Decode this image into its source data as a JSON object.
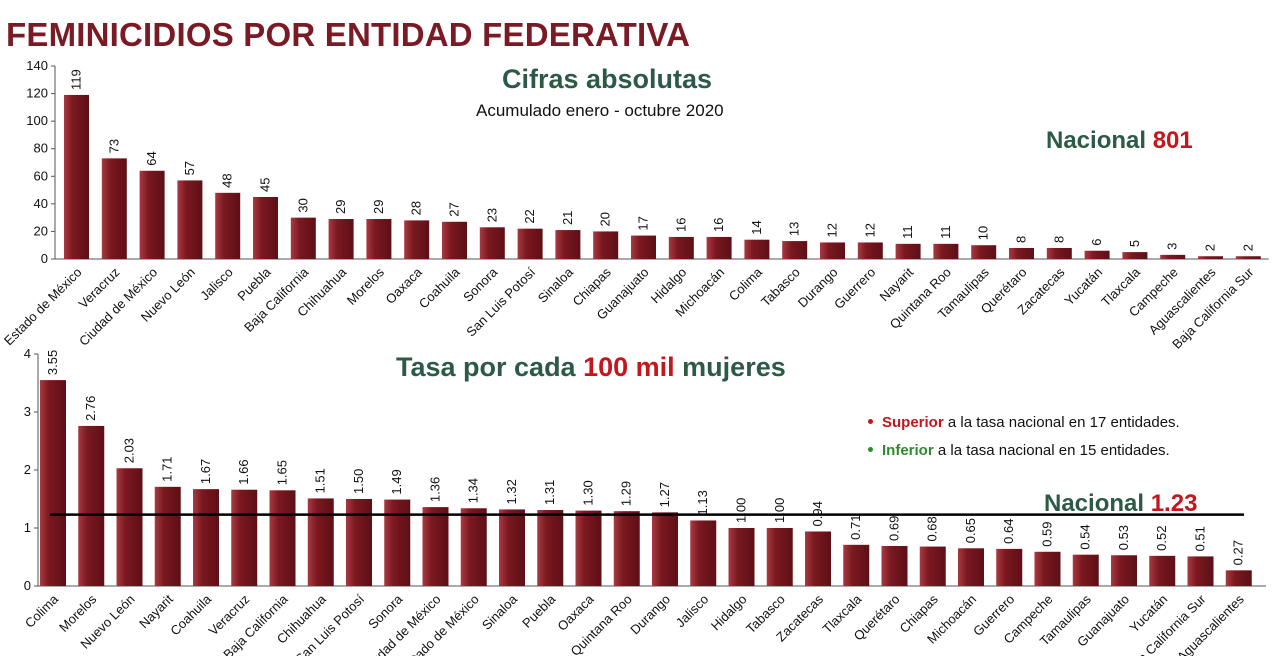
{
  "header": {
    "title": "FEMINICIDIOS POR ENTIDAD FEDERATIVA"
  },
  "top_chart": {
    "title": "Cifras absolutas",
    "subtitle": "Acumulado enero - octubre 2020",
    "national_label": "Nacional",
    "national_value": "801"
  },
  "bottom_chart": {
    "title_part1": "Tasa por cada",
    "title_highlight": "100 mil",
    "title_part2": "mujeres",
    "national_label": "Nacional",
    "national_value": "1.23",
    "legend": {
      "superior_word": "Superior",
      "superior_rest": "a la tasa nacional en 17 entidades.",
      "inferior_word": "Inferior",
      "inferior_rest": "a la tasa nacional en 15 entidades."
    }
  },
  "colors": {
    "bar": "#7b1820",
    "bar_highlight": "#a83a42",
    "title": "#7a1a24",
    "subtitle_green": "#2d5a45",
    "accent_red": "#c4161c",
    "legend_green": "#2e8b2e",
    "reference_line": "#000000"
  },
  "chart_data": [
    {
      "type": "bar",
      "title": "Cifras absolutas",
      "subtitle": "Acumulado enero - octubre 2020",
      "categories": [
        "Estado de México",
        "Veracruz",
        "Ciudad de México",
        "Nuevo León",
        "Jalisco",
        "Puebla",
        "Baja California",
        "Chihuahua",
        "Morelos",
        "Oaxaca",
        "Coahuila",
        "Sonora",
        "San Luis Potosí",
        "Sinaloa",
        "Chiapas",
        "Guanajuato",
        "Hidalgo",
        "Michoacán",
        "Colima",
        "Tabasco",
        "Durango",
        "Guerrero",
        "Nayarit",
        "Quintana Roo",
        "Tamaulipas",
        "Querétaro",
        "Zacatecas",
        "Yucatán",
        "Tlaxcala",
        "Campeche",
        "Aguascalientes",
        "Baja California Sur"
      ],
      "values": [
        119,
        73,
        64,
        57,
        48,
        45,
        30,
        29,
        29,
        28,
        27,
        23,
        22,
        21,
        20,
        17,
        16,
        16,
        14,
        13,
        12,
        12,
        11,
        11,
        10,
        8,
        8,
        6,
        5,
        3,
        2,
        2
      ],
      "value_labels": [
        "119",
        "73",
        "64",
        "57",
        "48",
        "45",
        "30",
        "29",
        "29",
        "28",
        "27",
        "23",
        "22",
        "21",
        "20",
        "17",
        "16",
        "16",
        "14",
        "13",
        "12",
        "12",
        "11",
        "11",
        "10",
        "8",
        "8",
        "6",
        "5",
        "3",
        "2",
        "2"
      ],
      "ylim": [
        0,
        140
      ],
      "yticks": [
        0,
        20,
        40,
        60,
        80,
        100,
        120,
        140
      ],
      "national_total": 801
    },
    {
      "type": "bar",
      "title": "Tasa por cada 100 mil mujeres",
      "categories": [
        "Colima",
        "Morelos",
        "Nuevo León",
        "Nayarit",
        "Coahuila",
        "Veracruz",
        "Baja California",
        "Chihuahua",
        "San Luis Potosí",
        "Sonora",
        "Ciudad de México",
        "Estado de México",
        "Sinaloa",
        "Puebla",
        "Oaxaca",
        "Quintana Roo",
        "Durango",
        "Jalisco",
        "Hidalgo",
        "Tabasco",
        "Zacatecas",
        "Tlaxcala",
        "Querétaro",
        "Chiapas",
        "Michoacán",
        "Guerrero",
        "Campeche",
        "Tamaulipas",
        "Guanajuato",
        "Yucatán",
        "Baja California Sur",
        "Aguascalientes"
      ],
      "values": [
        3.55,
        2.76,
        2.03,
        1.71,
        1.67,
        1.66,
        1.65,
        1.51,
        1.5,
        1.49,
        1.36,
        1.34,
        1.32,
        1.31,
        1.3,
        1.29,
        1.27,
        1.13,
        1.0,
        1.0,
        0.94,
        0.71,
        0.69,
        0.68,
        0.65,
        0.64,
        0.59,
        0.54,
        0.53,
        0.52,
        0.51,
        0.27
      ],
      "value_labels": [
        "3.55",
        "2.76",
        "2.03",
        "1.71",
        "1.67",
        "1.66",
        "1.65",
        "1.51",
        "1.50",
        "1.49",
        "1.36",
        "1.34",
        "1.32",
        "1.31",
        "1.30",
        "1.29",
        "1.27",
        "1.13",
        "1.00",
        "1.00",
        "0.94",
        "0.71",
        "0.69",
        "0.68",
        "0.65",
        "0.64",
        "0.59",
        "0.54",
        "0.53",
        "0.52",
        "0.51",
        "0.27"
      ],
      "ylim": [
        0,
        4
      ],
      "yticks": [
        0,
        1,
        2,
        3,
        4
      ],
      "reference_line": 1.23
    }
  ]
}
